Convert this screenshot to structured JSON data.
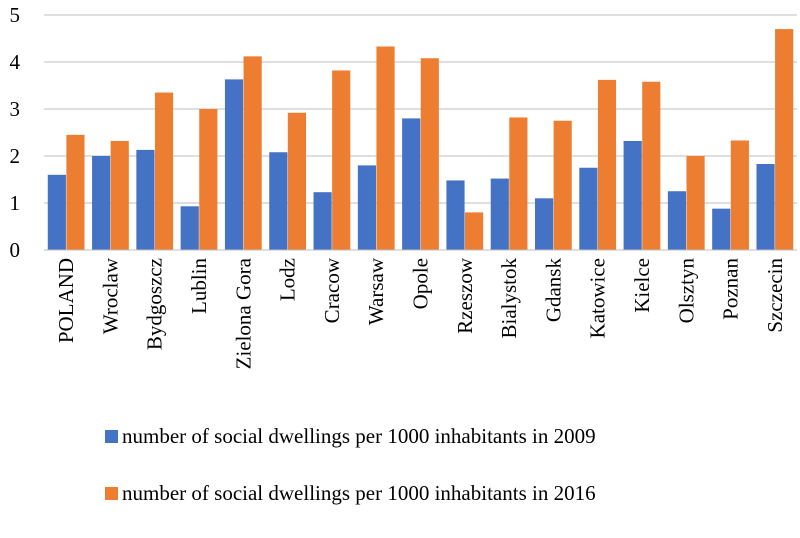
{
  "chart_data": {
    "type": "bar",
    "categories": [
      "POLAND",
      "Wroclaw",
      "Bydgoszcz",
      "Lublin",
      "Zielona Gora",
      "Lodz",
      "Cracow",
      "Warsaw",
      "Opole",
      "Rzeszow",
      "Bialystok",
      "Gdansk",
      "Katowice",
      "Kielce",
      "Olsztyn",
      "Poznan",
      "Szczecin"
    ],
    "series": [
      {
        "name": "number of social dwellings per 1000 inhabitants in 2009",
        "color": "#4472C4",
        "values": [
          1.6,
          2.0,
          2.13,
          0.93,
          3.63,
          2.08,
          1.23,
          1.8,
          2.8,
          1.48,
          1.52,
          1.1,
          1.75,
          2.32,
          1.25,
          0.88,
          1.83
        ]
      },
      {
        "name": "number of social dwellings per 1000 inhabitants in 2016",
        "color": "#ED7D31",
        "values": [
          2.45,
          2.32,
          3.35,
          3.0,
          4.12,
          2.92,
          3.82,
          4.33,
          4.08,
          0.8,
          2.82,
          2.75,
          3.62,
          3.58,
          2.0,
          2.33,
          4.7
        ]
      }
    ],
    "yticks": [
      "0",
      "1",
      "2",
      "3",
      "4",
      "5"
    ],
    "ylim": [
      0,
      5
    ],
    "grid": true,
    "legend_position": "bottom"
  }
}
